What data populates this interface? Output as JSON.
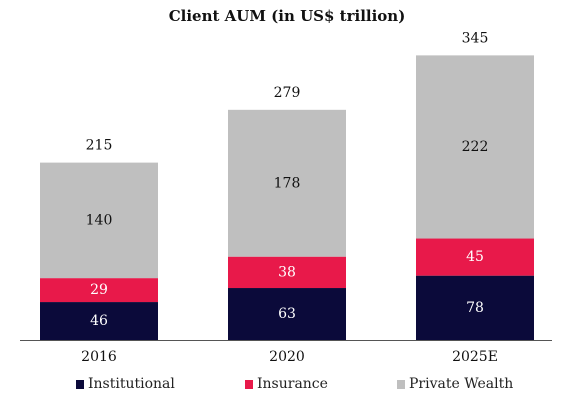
{
  "chart_data": {
    "type": "bar",
    "stacked": true,
    "title": "Client AUM (in US$ trillion)",
    "xlabel": "",
    "ylabel": "",
    "categories": [
      "2016",
      "2020",
      "2025E"
    ],
    "series": [
      {
        "name": "Institutional",
        "values": [
          46,
          63,
          78
        ],
        "color": "#0b0a3a",
        "label_color": "#ffffff"
      },
      {
        "name": "Insurance",
        "values": [
          29,
          38,
          45
        ],
        "color": "#e8194a",
        "label_color": "#ffffff"
      },
      {
        "name": "Private Wealth",
        "values": [
          140,
          178,
          222
        ],
        "color": "#bfbfbf",
        "label_color": "#111111"
      }
    ],
    "totals": [
      215,
      279,
      345
    ],
    "ylim": [
      0,
      370
    ],
    "grid": false,
    "legend_position": "bottom"
  }
}
